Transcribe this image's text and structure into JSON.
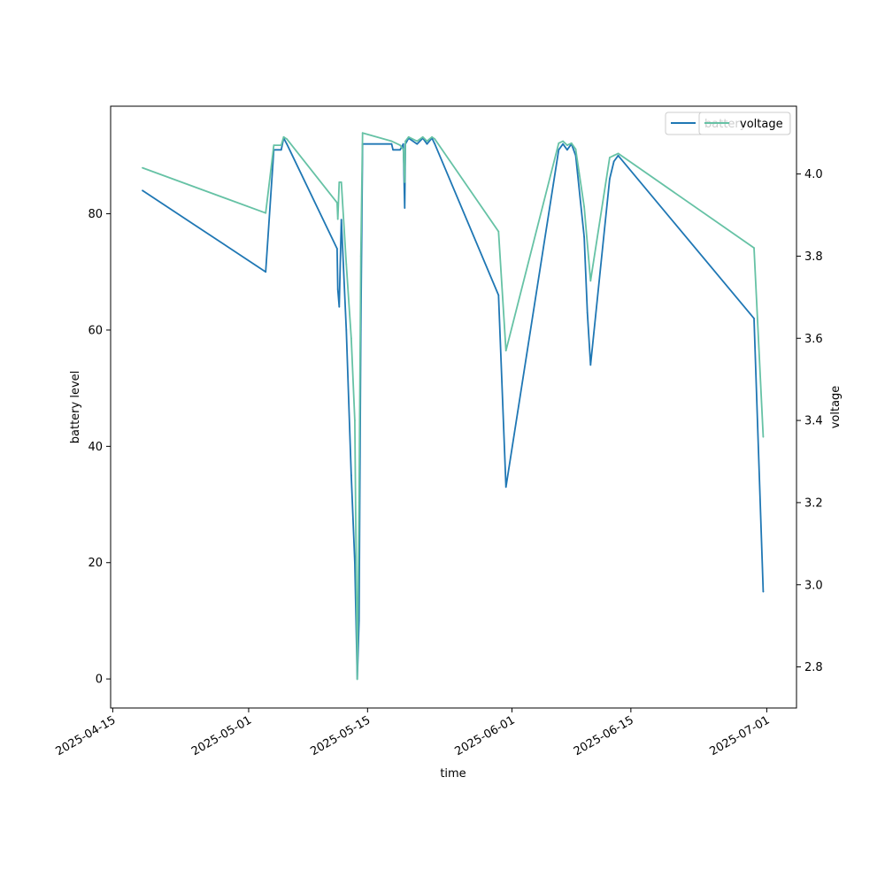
{
  "chart_data": {
    "type": "line",
    "xlabel": "time",
    "ylabel_left": "battery level",
    "ylabel_right": "voltage",
    "x_ticks": [
      "2025-04-15",
      "2025-05-01",
      "2025-05-15",
      "2025-06-01",
      "2025-06-15",
      "2025-07-01"
    ],
    "y_left_ticks": [
      "0",
      "20",
      "40",
      "60",
      "80"
    ],
    "y_right_ticks": [
      "2.8",
      "3.0",
      "3.2",
      "3.4",
      "3.6",
      "3.8",
      "4.0"
    ],
    "xlim": [
      "2025-04-14T18:00",
      "2025-07-04T12:00"
    ],
    "ylim_left": [
      -5,
      98.5
    ],
    "ylim_right": [
      2.7,
      4.165
    ],
    "grid": false,
    "legends": [
      {
        "placement": "top-right",
        "entries": [
          "battery"
        ],
        "color": "#1f77b4"
      },
      {
        "placement": "top-right",
        "entries": [
          "voltage"
        ],
        "color": "#66c2a5"
      }
    ],
    "series": [
      {
        "name": "battery",
        "axis": "left",
        "color": "#1f77b4",
        "points": [
          [
            "2025-04-18T12:00",
            84
          ],
          [
            "2025-05-03T00:00",
            70
          ],
          [
            "2025-05-03T23:00",
            91
          ],
          [
            "2025-05-04T20:00",
            91
          ],
          [
            "2025-05-05T03:00",
            93
          ],
          [
            "2025-05-05T12:00",
            92
          ],
          [
            "2025-05-11T10:00",
            74
          ],
          [
            "2025-05-11T12:00",
            67
          ],
          [
            "2025-05-11T16:00",
            64
          ],
          [
            "2025-05-11T22:00",
            79
          ],
          [
            "2025-05-12T12:00",
            60
          ],
          [
            "2025-05-13T02:00",
            35
          ],
          [
            "2025-05-13T12:00",
            20
          ],
          [
            "2025-05-13T19:00",
            0
          ],
          [
            "2025-05-14T00:00",
            10
          ],
          [
            "2025-05-14T05:00",
            60
          ],
          [
            "2025-05-14T10:00",
            92
          ],
          [
            "2025-05-17T20:00",
            92
          ],
          [
            "2025-05-18T00:00",
            91
          ],
          [
            "2025-05-18T20:00",
            91
          ],
          [
            "2025-05-19T05:00",
            92
          ],
          [
            "2025-05-19T09:00",
            81
          ],
          [
            "2025-05-19T11:00",
            92
          ],
          [
            "2025-05-19T20:00",
            93
          ],
          [
            "2025-05-20T20:00",
            92
          ],
          [
            "2025-05-21T12:00",
            93
          ],
          [
            "2025-05-22T00:00",
            92
          ],
          [
            "2025-05-22T14:00",
            93
          ],
          [
            "2025-05-22T22:00",
            92
          ],
          [
            "2025-05-30T10:00",
            66
          ],
          [
            "2025-05-31T07:00",
            33
          ],
          [
            "2025-06-06T12:00",
            91
          ],
          [
            "2025-06-07T00:00",
            92
          ],
          [
            "2025-06-07T12:00",
            91
          ],
          [
            "2025-06-08T00:00",
            92
          ],
          [
            "2025-06-08T12:00",
            90
          ],
          [
            "2025-06-09T12:00",
            76
          ],
          [
            "2025-06-09T21:00",
            63
          ],
          [
            "2025-06-10T06:00",
            54
          ],
          [
            "2025-06-12T12:00",
            86
          ],
          [
            "2025-06-13T00:00",
            89
          ],
          [
            "2025-06-13T12:00",
            90
          ],
          [
            "2025-06-29T12:00",
            62
          ],
          [
            "2025-06-30T14:00",
            15
          ]
        ]
      },
      {
        "name": "voltage",
        "axis": "right",
        "color": "#66c2a5",
        "points": [
          [
            "2025-04-18T12:00",
            4.015
          ],
          [
            "2025-05-03T00:00",
            3.905
          ],
          [
            "2025-05-03T23:00",
            4.07
          ],
          [
            "2025-05-04T20:00",
            4.07
          ],
          [
            "2025-05-05T03:00",
            4.09
          ],
          [
            "2025-05-05T12:00",
            4.085
          ],
          [
            "2025-05-11T10:00",
            3.93
          ],
          [
            "2025-05-11T12:00",
            3.89
          ],
          [
            "2025-05-11T16:00",
            3.98
          ],
          [
            "2025-05-11T22:00",
            3.98
          ],
          [
            "2025-05-12T12:00",
            3.78
          ],
          [
            "2025-05-13T02:00",
            3.6
          ],
          [
            "2025-05-13T12:00",
            3.4
          ],
          [
            "2025-05-13T19:00",
            2.77
          ],
          [
            "2025-05-14T00:00",
            3.2
          ],
          [
            "2025-05-14T05:00",
            3.8
          ],
          [
            "2025-05-14T10:00",
            4.1
          ],
          [
            "2025-05-17T20:00",
            4.08
          ],
          [
            "2025-05-18T20:00",
            4.07
          ],
          [
            "2025-05-19T05:00",
            4.06
          ],
          [
            "2025-05-19T09:00",
            3.98
          ],
          [
            "2025-05-19T11:00",
            4.08
          ],
          [
            "2025-05-19T20:00",
            4.09
          ],
          [
            "2025-05-20T20:00",
            4.08
          ],
          [
            "2025-05-21T12:00",
            4.09
          ],
          [
            "2025-05-22T00:00",
            4.08
          ],
          [
            "2025-05-22T14:00",
            4.09
          ],
          [
            "2025-05-22T22:00",
            4.085
          ],
          [
            "2025-05-30T10:00",
            3.86
          ],
          [
            "2025-05-31T07:00",
            3.57
          ],
          [
            "2025-06-06T12:00",
            4.075
          ],
          [
            "2025-06-07T00:00",
            4.08
          ],
          [
            "2025-06-07T12:00",
            4.07
          ],
          [
            "2025-06-08T00:00",
            4.075
          ],
          [
            "2025-06-08T12:00",
            4.06
          ],
          [
            "2025-06-09T12:00",
            3.92
          ],
          [
            "2025-06-10T06:00",
            3.74
          ],
          [
            "2025-06-12T12:00",
            4.04
          ],
          [
            "2025-06-13T00:00",
            4.045
          ],
          [
            "2025-06-13T12:00",
            4.05
          ],
          [
            "2025-06-29T12:00",
            3.82
          ],
          [
            "2025-06-30T14:00",
            3.36
          ]
        ]
      }
    ]
  }
}
